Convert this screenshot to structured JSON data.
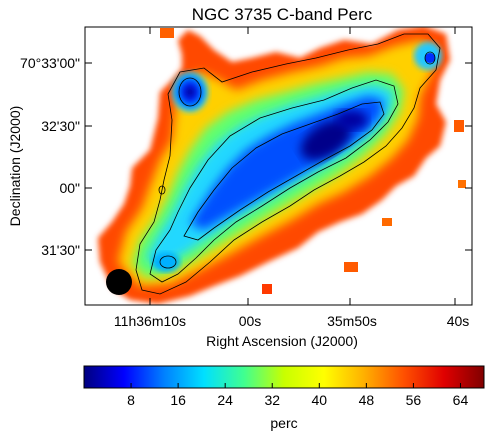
{
  "chart_data": {
    "type": "heatmap",
    "title": "NGC 3735   C-band   Perc",
    "xlabel": "Right Ascension (J2000)",
    "ylabel": "Declination (J2000)",
    "x_ticks": [
      "11h36m10s",
      "00s",
      "35m50s",
      "40s"
    ],
    "y_ticks": [
      "70°33'00\"",
      "32'30\"",
      "00\"",
      "31'30\""
    ],
    "colorbar": {
      "label": "perc",
      "ticks": [
        8,
        16,
        24,
        32,
        40,
        48,
        56,
        64
      ],
      "range": [
        0,
        68
      ],
      "colors": [
        "#00007f",
        "#0000ff",
        "#0080ff",
        "#00e0ff",
        "#40ff90",
        "#c8ff00",
        "#ffff00",
        "#ffb000",
        "#ff5000",
        "#e00000",
        "#800000"
      ]
    },
    "beam": "filled black circle (lower-left)",
    "contours": 3,
    "features": "elongated blue ridge (low perc) running lower-left to upper-right, surrounded by green/yellow and red/orange edges; two blue blobs at upper-left and upper-right ends"
  }
}
